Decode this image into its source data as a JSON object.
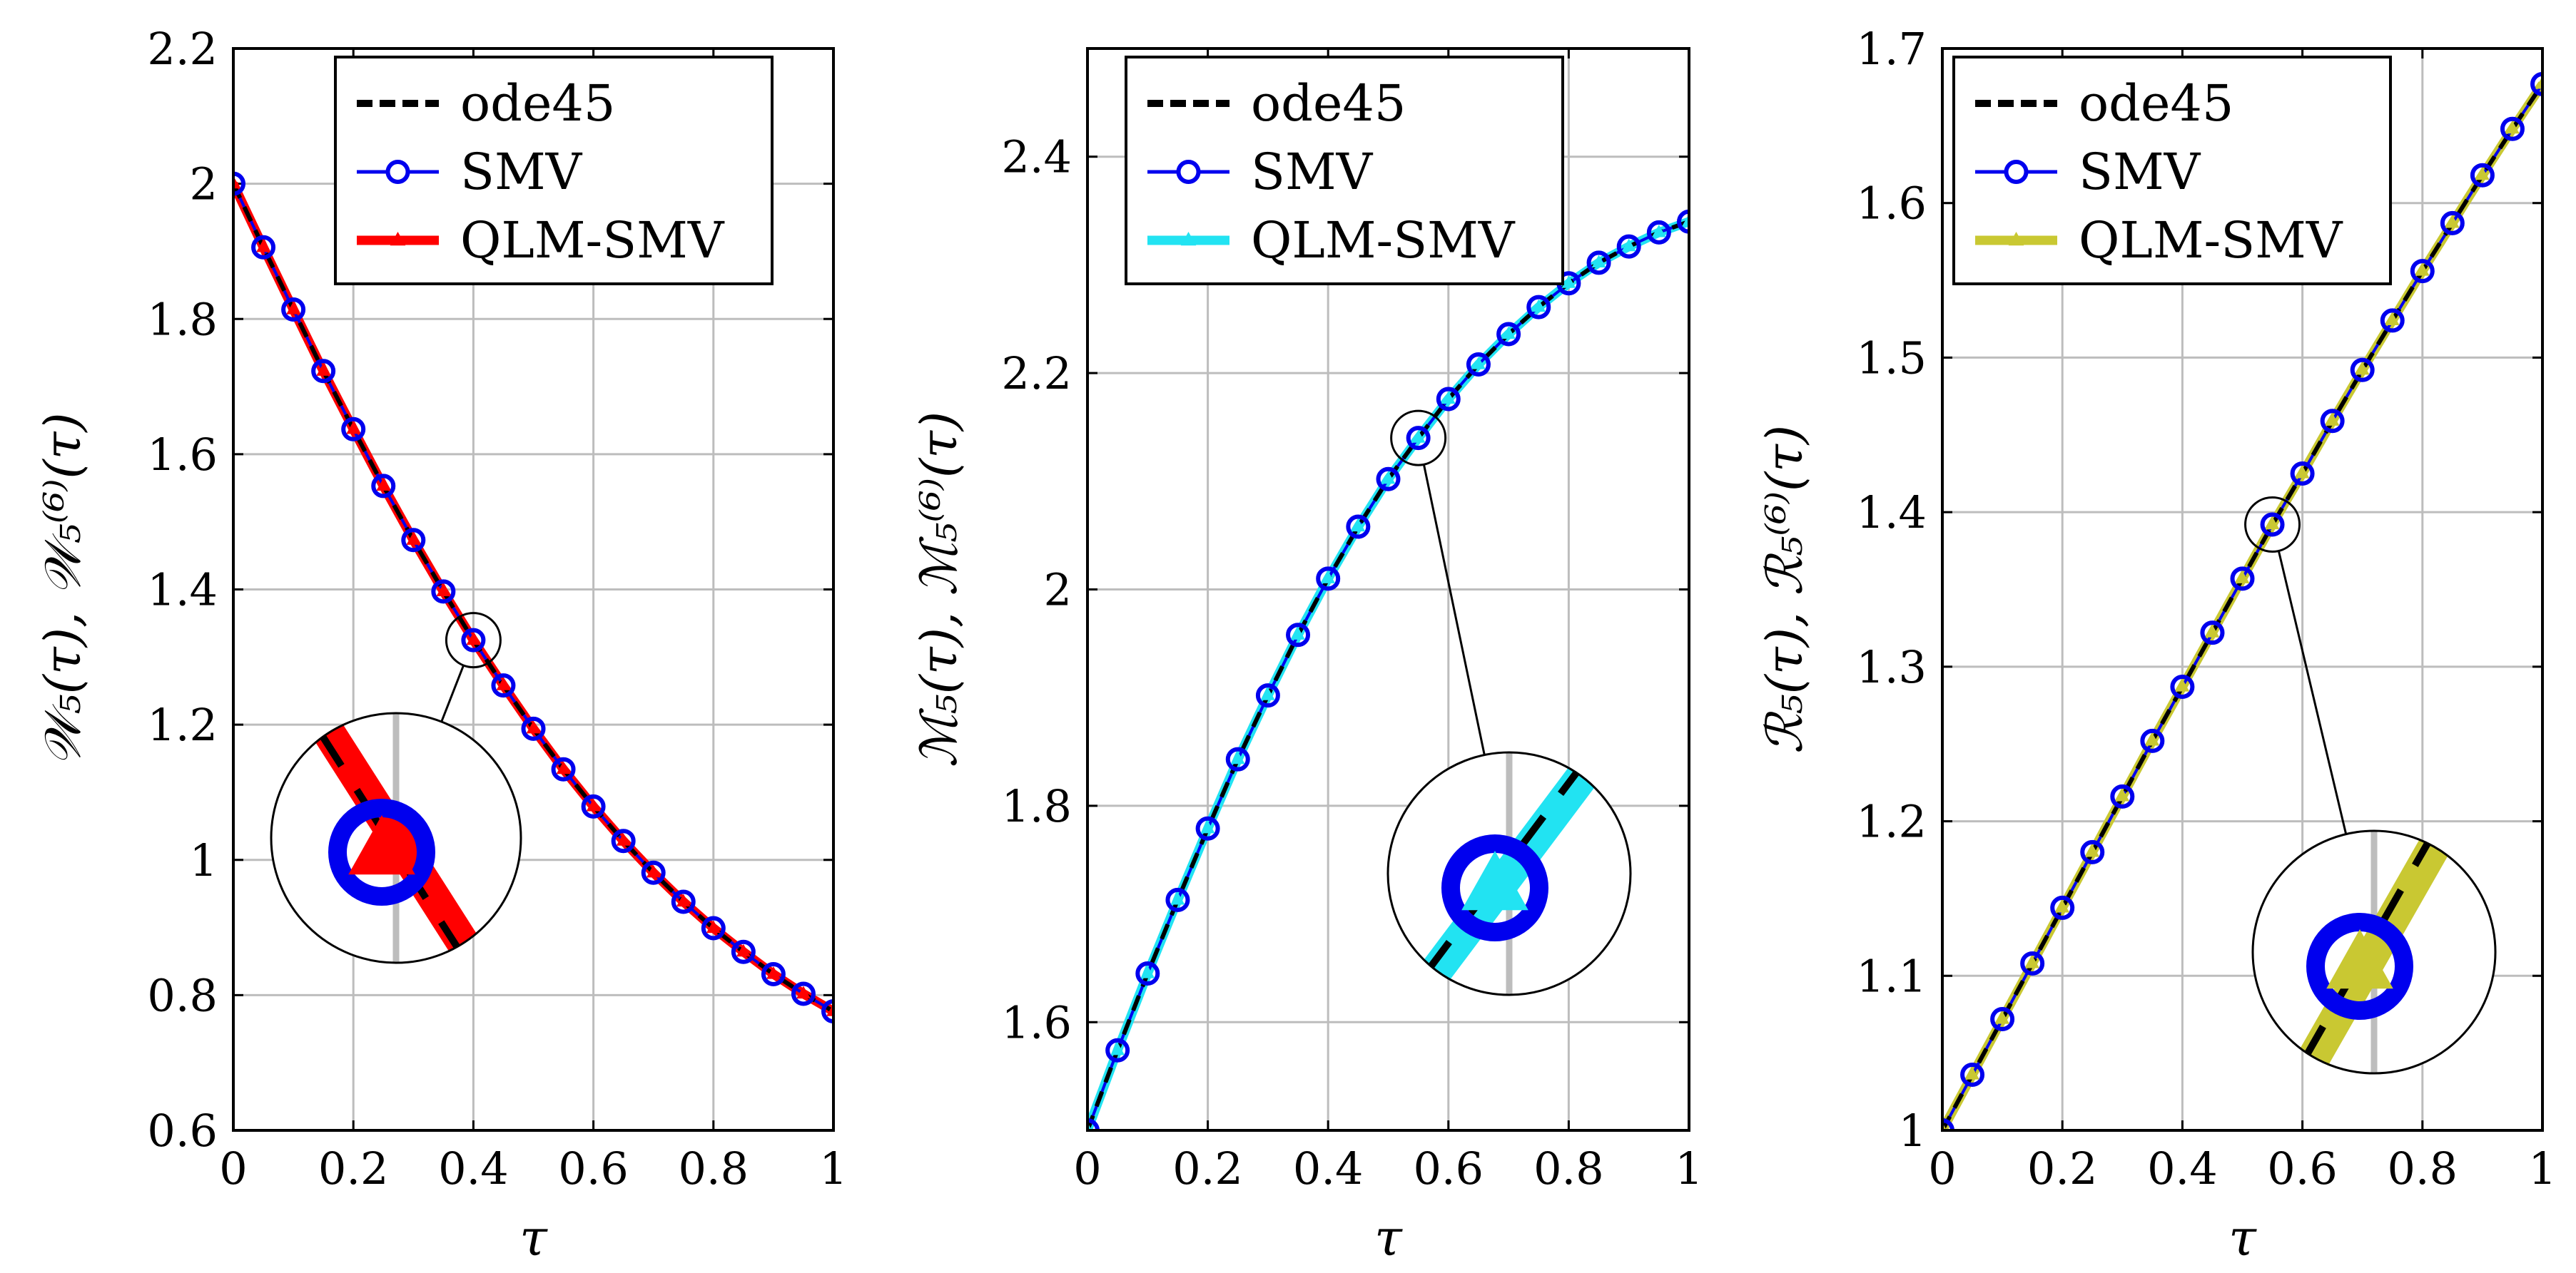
{
  "figure": {
    "panel_count": 3
  },
  "chart_data": [
    {
      "type": "line",
      "title": "",
      "xlabel": "τ",
      "ylabel": "𝒲₅(τ), 𝒲₅⁽⁶⁾(τ)",
      "xlim": [
        0,
        1
      ],
      "ylim": [
        0.6,
        2.2
      ],
      "xticks": [
        0,
        0.2,
        0.4,
        0.6,
        0.8,
        1
      ],
      "xtick_labels": [
        "0",
        "0.2",
        "0.4",
        "0.6",
        "0.8",
        "1"
      ],
      "yticks": [
        0.6,
        0.8,
        1.0,
        1.2,
        1.4,
        1.6,
        1.8,
        2.0,
        2.2
      ],
      "ytick_labels": [
        "0.6",
        "0.8",
        "1",
        "1.2",
        "1.4",
        "1.6",
        "1.8",
        "2",
        "2.2"
      ],
      "grid": true,
      "legend_position": "top-center",
      "x": [
        0,
        0.05,
        0.1,
        0.15,
        0.2,
        0.25,
        0.3,
        0.35,
        0.4,
        0.45,
        0.5,
        0.55,
        0.6,
        0.65,
        0.7,
        0.75,
        0.8,
        0.85,
        0.9,
        0.95,
        1.0
      ],
      "series": [
        {
          "name": "ode45",
          "style": "dashed",
          "color": "#000000",
          "values": [
            2.0,
            1.906,
            1.814,
            1.723,
            1.637,
            1.553,
            1.473,
            1.397,
            1.325,
            1.258,
            1.194,
            1.134,
            1.079,
            1.028,
            0.981,
            0.938,
            0.899,
            0.864,
            0.831,
            0.802,
            0.776
          ]
        },
        {
          "name": "SMV",
          "style": "line-circle",
          "color": "#0000ee",
          "values": [
            2.0,
            1.906,
            1.814,
            1.723,
            1.637,
            1.553,
            1.473,
            1.397,
            1.325,
            1.258,
            1.194,
            1.134,
            1.079,
            1.028,
            0.981,
            0.938,
            0.899,
            0.864,
            0.831,
            0.802,
            0.776
          ]
        },
        {
          "name": "QLM-SMV",
          "style": "thick-tri",
          "color": "#ff0000",
          "values": [
            2.0,
            1.906,
            1.814,
            1.723,
            1.637,
            1.553,
            1.473,
            1.397,
            1.325,
            1.258,
            1.194,
            1.134,
            1.079,
            1.028,
            0.981,
            0.938,
            0.899,
            0.864,
            0.831,
            0.802,
            0.776
          ]
        }
      ],
      "zoom": {
        "x": 0.4,
        "y": 1.325,
        "inset_side": "lower-left"
      }
    },
    {
      "type": "line",
      "title": "",
      "xlabel": "τ",
      "ylabel": "ℳ₅(τ), ℳ₅⁽⁶⁾(τ)",
      "xlim": [
        0,
        1
      ],
      "ylim": [
        1.5,
        2.5
      ],
      "xticks": [
        0,
        0.2,
        0.4,
        0.6,
        0.8,
        1
      ],
      "xtick_labels": [
        "0",
        "0.2",
        "0.4",
        "0.6",
        "0.8",
        "1"
      ],
      "yticks": [
        1.6,
        1.8,
        2.0,
        2.2,
        2.4
      ],
      "ytick_labels": [
        "1.6",
        "1.8",
        "2",
        "2.2",
        "2.4"
      ],
      "grid": true,
      "legend_position": "top-center",
      "x": [
        0,
        0.05,
        0.1,
        0.15,
        0.2,
        0.25,
        0.3,
        0.35,
        0.4,
        0.45,
        0.5,
        0.55,
        0.6,
        0.65,
        0.7,
        0.75,
        0.8,
        0.85,
        0.9,
        0.95,
        1.0
      ],
      "series": [
        {
          "name": "ode45",
          "style": "dashed",
          "color": "#000000",
          "values": [
            1.5,
            1.574,
            1.645,
            1.713,
            1.779,
            1.843,
            1.902,
            1.958,
            2.01,
            2.058,
            2.102,
            2.14,
            2.176,
            2.208,
            2.236,
            2.261,
            2.283,
            2.302,
            2.317,
            2.33,
            2.34
          ]
        },
        {
          "name": "SMV",
          "style": "line-circle",
          "color": "#0000ee",
          "values": [
            1.5,
            1.574,
            1.645,
            1.713,
            1.779,
            1.843,
            1.902,
            1.958,
            2.01,
            2.058,
            2.102,
            2.14,
            2.176,
            2.208,
            2.236,
            2.261,
            2.283,
            2.302,
            2.317,
            2.33,
            2.34
          ]
        },
        {
          "name": "QLM-SMV",
          "style": "thick-tri",
          "color": "#22e3f2",
          "values": [
            1.5,
            1.574,
            1.645,
            1.713,
            1.779,
            1.843,
            1.902,
            1.958,
            2.01,
            2.058,
            2.102,
            2.14,
            2.176,
            2.208,
            2.236,
            2.261,
            2.283,
            2.302,
            2.317,
            2.33,
            2.34
          ]
        }
      ],
      "zoom": {
        "x": 0.55,
        "y": 2.14,
        "inset_side": "lower-right"
      }
    },
    {
      "type": "line",
      "title": "",
      "xlabel": "τ",
      "ylabel": "ℛ₅(τ), ℛ₅⁽⁶⁾(τ)",
      "xlim": [
        0,
        1
      ],
      "ylim": [
        1.0,
        1.7
      ],
      "xticks": [
        0,
        0.2,
        0.4,
        0.6,
        0.8,
        1
      ],
      "xtick_labels": [
        "0",
        "0.2",
        "0.4",
        "0.6",
        "0.8",
        "1"
      ],
      "yticks": [
        1.0,
        1.1,
        1.2,
        1.3,
        1.4,
        1.5,
        1.6,
        1.7
      ],
      "ytick_labels": [
        "1",
        "1.1",
        "1.2",
        "1.3",
        "1.4",
        "1.5",
        "1.6",
        "1.7"
      ],
      "grid": true,
      "legend_position": "top-center",
      "x": [
        0,
        0.05,
        0.1,
        0.15,
        0.2,
        0.25,
        0.3,
        0.35,
        0.4,
        0.45,
        0.5,
        0.55,
        0.6,
        0.65,
        0.7,
        0.75,
        0.8,
        0.85,
        0.9,
        0.95,
        1.0
      ],
      "series": [
        {
          "name": "ode45",
          "style": "dashed",
          "color": "#000000",
          "values": [
            1.0,
            1.036,
            1.072,
            1.108,
            1.144,
            1.18,
            1.216,
            1.252,
            1.287,
            1.322,
            1.357,
            1.392,
            1.425,
            1.459,
            1.492,
            1.524,
            1.556,
            1.587,
            1.618,
            1.648,
            1.677
          ]
        },
        {
          "name": "SMV",
          "style": "line-circle",
          "color": "#0000ee",
          "values": [
            1.0,
            1.036,
            1.072,
            1.108,
            1.144,
            1.18,
            1.216,
            1.252,
            1.287,
            1.322,
            1.357,
            1.392,
            1.425,
            1.459,
            1.492,
            1.524,
            1.556,
            1.587,
            1.618,
            1.648,
            1.677
          ]
        },
        {
          "name": "QLM-SMV",
          "style": "thick-tri",
          "color": "#c9c832",
          "values": [
            1.0,
            1.036,
            1.072,
            1.108,
            1.144,
            1.18,
            1.216,
            1.252,
            1.287,
            1.322,
            1.357,
            1.392,
            1.425,
            1.459,
            1.492,
            1.524,
            1.556,
            1.587,
            1.618,
            1.648,
            1.677
          ]
        }
      ],
      "zoom": {
        "x": 0.55,
        "y": 1.392,
        "inset_side": "lower-right"
      }
    }
  ]
}
